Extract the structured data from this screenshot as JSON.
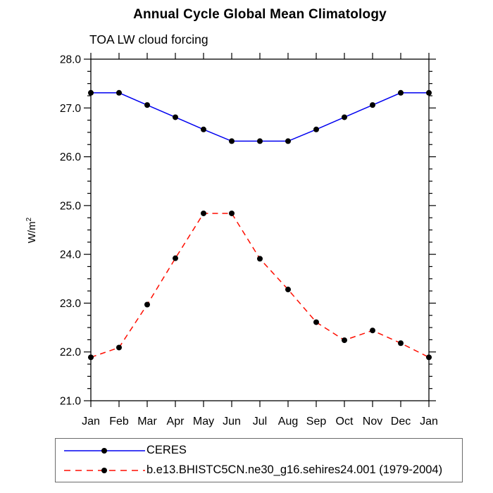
{
  "title": "Annual Cycle Global Mean Climatology",
  "subtitle": "TOA LW cloud forcing",
  "y_axis": {
    "label_base": "W/m",
    "label_exponent": "2"
  },
  "colors": {
    "ceres_line": "#0000f0",
    "model_line": "#ff0d00",
    "marker": "#000000",
    "axis": "#000000",
    "legend_border": "#6b6b6b",
    "background": "#ffffff"
  },
  "chart_data": {
    "type": "line",
    "title": "Annual Cycle Global Mean Climatology",
    "subtitle": "TOA LW cloud forcing",
    "xlabel": "",
    "ylabel": "W/m^2",
    "x_categories": [
      "Jan",
      "Feb",
      "Mar",
      "Apr",
      "May",
      "Jun",
      "Jul",
      "Aug",
      "Sep",
      "Oct",
      "Nov",
      "Dec",
      "Jan"
    ],
    "ylim": [
      21.0,
      28.0
    ],
    "ytick_major_step": 1.0,
    "ytick_minor_step": 0.25,
    "ytick_label_format": "one_decimal",
    "grid": false,
    "legend_position": "bottom-left-boxed",
    "series": [
      {
        "name": "CERES",
        "style": "solid",
        "color": "#0000f0",
        "marker": "circle",
        "marker_color": "#000000",
        "values": [
          27.31,
          27.31,
          27.06,
          26.81,
          26.56,
          26.32,
          26.32,
          26.32,
          26.56,
          26.81,
          27.06,
          27.31,
          27.31
        ]
      },
      {
        "name": "b.e13.BHISTC5CN.ne30_g16.sehires24.001 (1979-2004)",
        "style": "dashed",
        "color": "#ff0d00",
        "marker": "circle",
        "marker_color": "#000000",
        "values": [
          21.89,
          22.09,
          22.97,
          23.92,
          24.84,
          24.84,
          23.91,
          23.28,
          22.61,
          22.24,
          22.44,
          22.18,
          21.89
        ]
      }
    ]
  }
}
